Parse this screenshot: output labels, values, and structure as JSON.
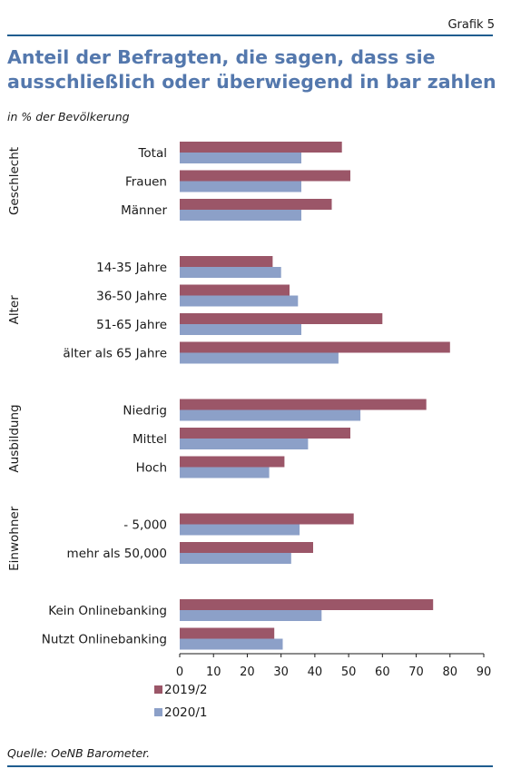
{
  "header": {
    "figure_number": "Grafik 5",
    "title": "Anteil der Befragten, die sagen, dass sie ausschließlich oder überwiegend in bar zahlen",
    "subtitle": "in % der Bevölkerung"
  },
  "footer": {
    "source": "Quelle: OeNB Barometer."
  },
  "colors": {
    "series_2019": "#9b5668",
    "series_2020": "#8ca0c8",
    "rule": "#1f5d8f",
    "title": "#5478ad"
  },
  "chart_data": {
    "type": "bar",
    "orientation": "horizontal",
    "xlim": [
      0,
      90
    ],
    "xticks": [
      0,
      10,
      20,
      30,
      40,
      50,
      60,
      70,
      80,
      90
    ],
    "grid": false,
    "legend_position": "bottom-left",
    "groups": [
      {
        "label": "Geschlecht",
        "categories": [
          "Total",
          "Frauen",
          "Männer"
        ]
      },
      {
        "label": "Alter",
        "categories": [
          "14-35 Jahre",
          "36-50 Jahre",
          "51-65 Jahre",
          "älter als 65 Jahre"
        ]
      },
      {
        "label": "Ausbildung",
        "categories": [
          "Niedrig",
          "Mittel",
          "Hoch"
        ]
      },
      {
        "label": "Einwohner",
        "categories": [
          "- 5,000",
          "mehr als 50,000"
        ]
      },
      {
        "label": "",
        "categories": [
          "Kein Onlinebanking",
          "Nutzt Onlinebanking"
        ]
      }
    ],
    "categories": [
      "Total",
      "Frauen",
      "Männer",
      "14-35 Jahre",
      "36-50 Jahre",
      "51-65 Jahre",
      "älter als 65 Jahre",
      "Niedrig",
      "Mittel",
      "Hoch",
      "- 5,000",
      "mehr als 50,000",
      "Kein Onlinebanking",
      "Nutzt Onlinebanking"
    ],
    "series": [
      {
        "name": "2019/2",
        "values": [
          48,
          50.5,
          45,
          27.5,
          32.5,
          60,
          80,
          73,
          50.5,
          31,
          51.5,
          39.5,
          75,
          28
        ]
      },
      {
        "name": "2020/1",
        "values": [
          36,
          36,
          36,
          30,
          35,
          36,
          47,
          53.5,
          38,
          26.5,
          35.5,
          33,
          42,
          30.5
        ]
      }
    ]
  }
}
